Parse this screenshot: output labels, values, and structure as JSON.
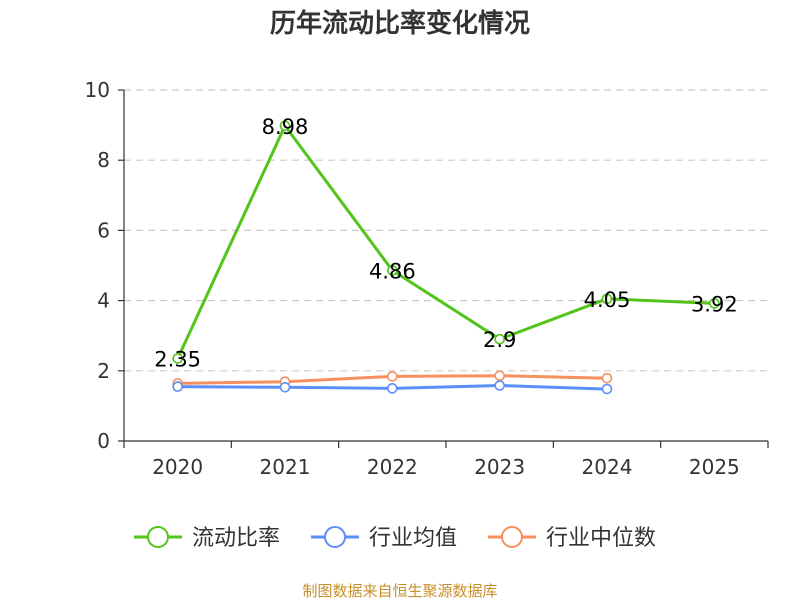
{
  "chart_data": {
    "type": "line",
    "title": "历年流动比率变化情况",
    "categories": [
      "2020",
      "2021",
      "2022",
      "2023",
      "2024",
      "2025"
    ],
    "ylim": [
      0,
      10
    ],
    "yticks": [
      0,
      2,
      4,
      6,
      8,
      10
    ],
    "grid": true,
    "legend_position": "bottom",
    "series": [
      {
        "name": "流动比率",
        "color": "#52c41a",
        "values": [
          2.35,
          8.98,
          4.86,
          2.9,
          4.05,
          3.92
        ],
        "labels": [
          "2.35",
          "8.98",
          "4.86",
          "2.9",
          "4.05",
          "3.92"
        ]
      },
      {
        "name": "行业均值",
        "color": "#5b8ff9",
        "values": [
          1.55,
          1.53,
          1.5,
          1.58,
          1.48,
          null
        ],
        "labels": null
      },
      {
        "name": "行业中位数",
        "color": "#f6905f",
        "values": [
          1.64,
          1.69,
          1.84,
          1.86,
          1.79,
          null
        ],
        "labels": null
      }
    ],
    "source": "制图数据来自恒生聚源数据库"
  }
}
